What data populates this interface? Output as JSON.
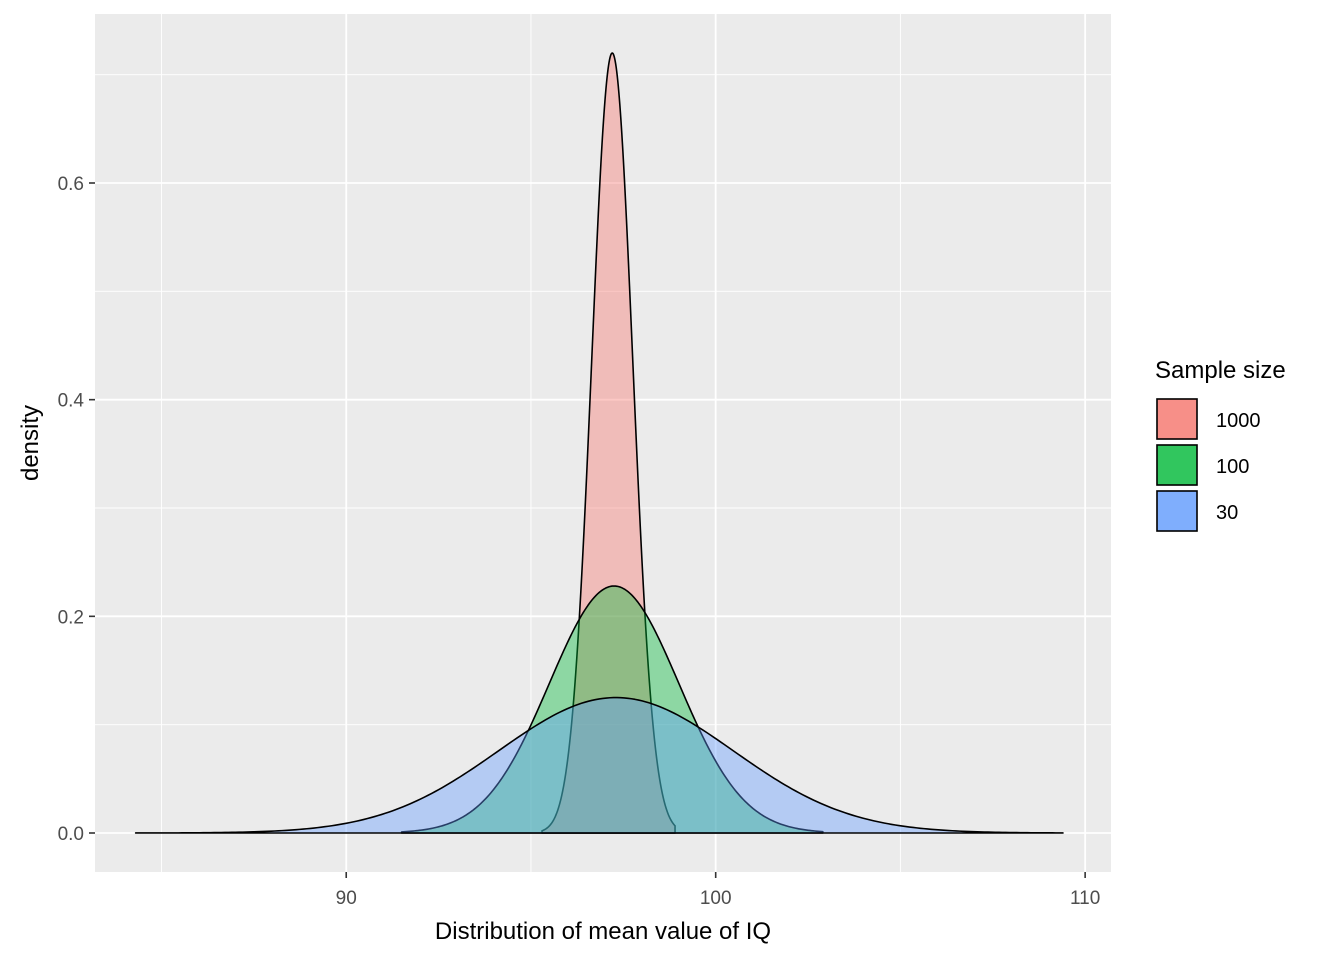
{
  "chart_data": {
    "type": "area",
    "title": "",
    "xlabel": "Distribution of mean value of IQ",
    "ylabel": "density",
    "xlim": [
      83.2,
      110.7
    ],
    "ylim": [
      -0.036,
      0.756
    ],
    "x_ticks": [
      90,
      100,
      110
    ],
    "x_tick_labels": [
      "90",
      "100",
      "110"
    ],
    "y_ticks": [
      0.0,
      0.2,
      0.4,
      0.6
    ],
    "y_tick_labels": [
      "0.0",
      "0.2",
      "0.4",
      "0.6"
    ],
    "grid": true,
    "legend": {
      "title": "Sample size",
      "placement": "right"
    },
    "series": [
      {
        "name": "1000",
        "color": "#F8766D",
        "fill_opacity": 0.4,
        "mean": 97.2,
        "sd": 0.555,
        "x_range": [
          95.3,
          98.9
        ],
        "peak": 0.72
      },
      {
        "name": "100",
        "color": "#00BA38",
        "fill_opacity": 0.4,
        "mean": 97.25,
        "sd": 1.75,
        "x_range": [
          91.5,
          102.9
        ],
        "peak": 0.228
      },
      {
        "name": "30",
        "color": "#619CFF",
        "fill_opacity": 0.4,
        "mean": 97.3,
        "sd": 3.18,
        "x_range": [
          84.3,
          109.4
        ],
        "peak": 0.125
      }
    ]
  }
}
